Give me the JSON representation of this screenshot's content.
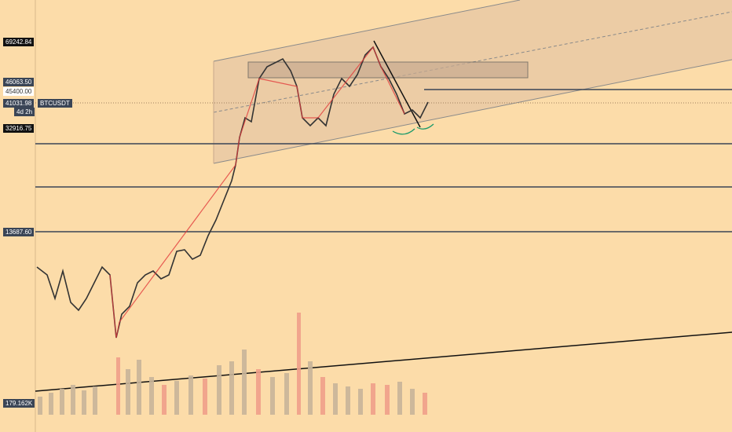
{
  "price_labels": {
    "high": "69242.84",
    "level_1": "46063.50",
    "alert": "45400.00",
    "last": "41031.98",
    "symbol": "BTCUSDT",
    "countdown": "4d 2h",
    "level_2": "32916.75",
    "level_3": "13687.60",
    "volume": "179.162K"
  }
}
